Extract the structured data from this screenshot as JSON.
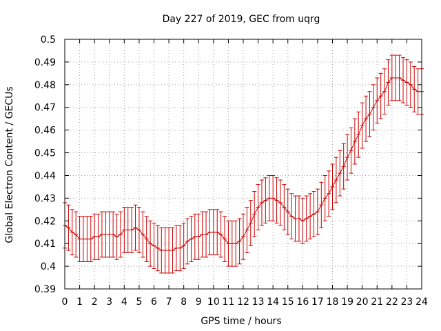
{
  "chart_data": {
    "type": "line",
    "title": "Day 227 of 2019, GEC from uqrg",
    "xlabel": "GPS time / hours",
    "ylabel": "Global Electron Content / GECUs",
    "xlim": [
      0,
      24
    ],
    "ylim": [
      0.39,
      0.5
    ],
    "x_ticks": [
      0,
      1,
      2,
      3,
      4,
      5,
      6,
      7,
      8,
      9,
      10,
      11,
      12,
      13,
      14,
      15,
      16,
      17,
      18,
      19,
      20,
      21,
      22,
      23,
      24
    ],
    "y_ticks": [
      0.39,
      0.4,
      0.41,
      0.42,
      0.43,
      0.44,
      0.45,
      0.46,
      0.47,
      0.48,
      0.49,
      0.5
    ],
    "grid": true,
    "error_bar_halfwidth": 0.01,
    "series": [
      {
        "color": "#cc0000",
        "x": [
          0,
          0.25,
          0.5,
          0.75,
          1,
          1.25,
          1.5,
          1.75,
          2,
          2.25,
          2.5,
          2.75,
          3,
          3.25,
          3.5,
          3.75,
          4,
          4.25,
          4.5,
          4.75,
          5,
          5.25,
          5.5,
          5.75,
          6,
          6.25,
          6.5,
          6.75,
          7,
          7.25,
          7.5,
          7.75,
          8,
          8.25,
          8.5,
          8.75,
          9,
          9.25,
          9.5,
          9.75,
          10,
          10.25,
          10.5,
          10.75,
          11,
          11.25,
          11.5,
          11.75,
          12,
          12.25,
          12.5,
          12.75,
          13,
          13.25,
          13.5,
          13.75,
          14,
          14.25,
          14.5,
          14.75,
          15,
          15.25,
          15.5,
          15.75,
          16,
          16.25,
          16.5,
          16.75,
          17,
          17.25,
          17.5,
          17.75,
          18,
          18.25,
          18.5,
          18.75,
          19,
          19.25,
          19.5,
          19.75,
          20,
          20.25,
          20.5,
          20.75,
          21,
          21.25,
          21.5,
          21.75,
          22,
          22.25,
          22.5,
          22.75,
          23,
          23.25,
          23.5,
          23.75,
          24
        ],
        "y": [
          0.418,
          0.417,
          0.415,
          0.414,
          0.412,
          0.412,
          0.412,
          0.412,
          0.413,
          0.413,
          0.414,
          0.414,
          0.414,
          0.414,
          0.413,
          0.414,
          0.416,
          0.416,
          0.416,
          0.417,
          0.416,
          0.414,
          0.412,
          0.41,
          0.409,
          0.408,
          0.407,
          0.407,
          0.407,
          0.407,
          0.408,
          0.408,
          0.409,
          0.411,
          0.412,
          0.413,
          0.413,
          0.414,
          0.414,
          0.415,
          0.415,
          0.415,
          0.414,
          0.412,
          0.41,
          0.41,
          0.41,
          0.411,
          0.413,
          0.416,
          0.419,
          0.423,
          0.426,
          0.428,
          0.429,
          0.43,
          0.43,
          0.429,
          0.428,
          0.426,
          0.424,
          0.422,
          0.421,
          0.421,
          0.42,
          0.421,
          0.422,
          0.423,
          0.424,
          0.427,
          0.43,
          0.432,
          0.435,
          0.438,
          0.441,
          0.444,
          0.448,
          0.451,
          0.455,
          0.458,
          0.462,
          0.465,
          0.467,
          0.47,
          0.473,
          0.475,
          0.477,
          0.481,
          0.483,
          0.483,
          0.483,
          0.482,
          0.481,
          0.48,
          0.478,
          0.477,
          0.477
        ]
      }
    ]
  }
}
